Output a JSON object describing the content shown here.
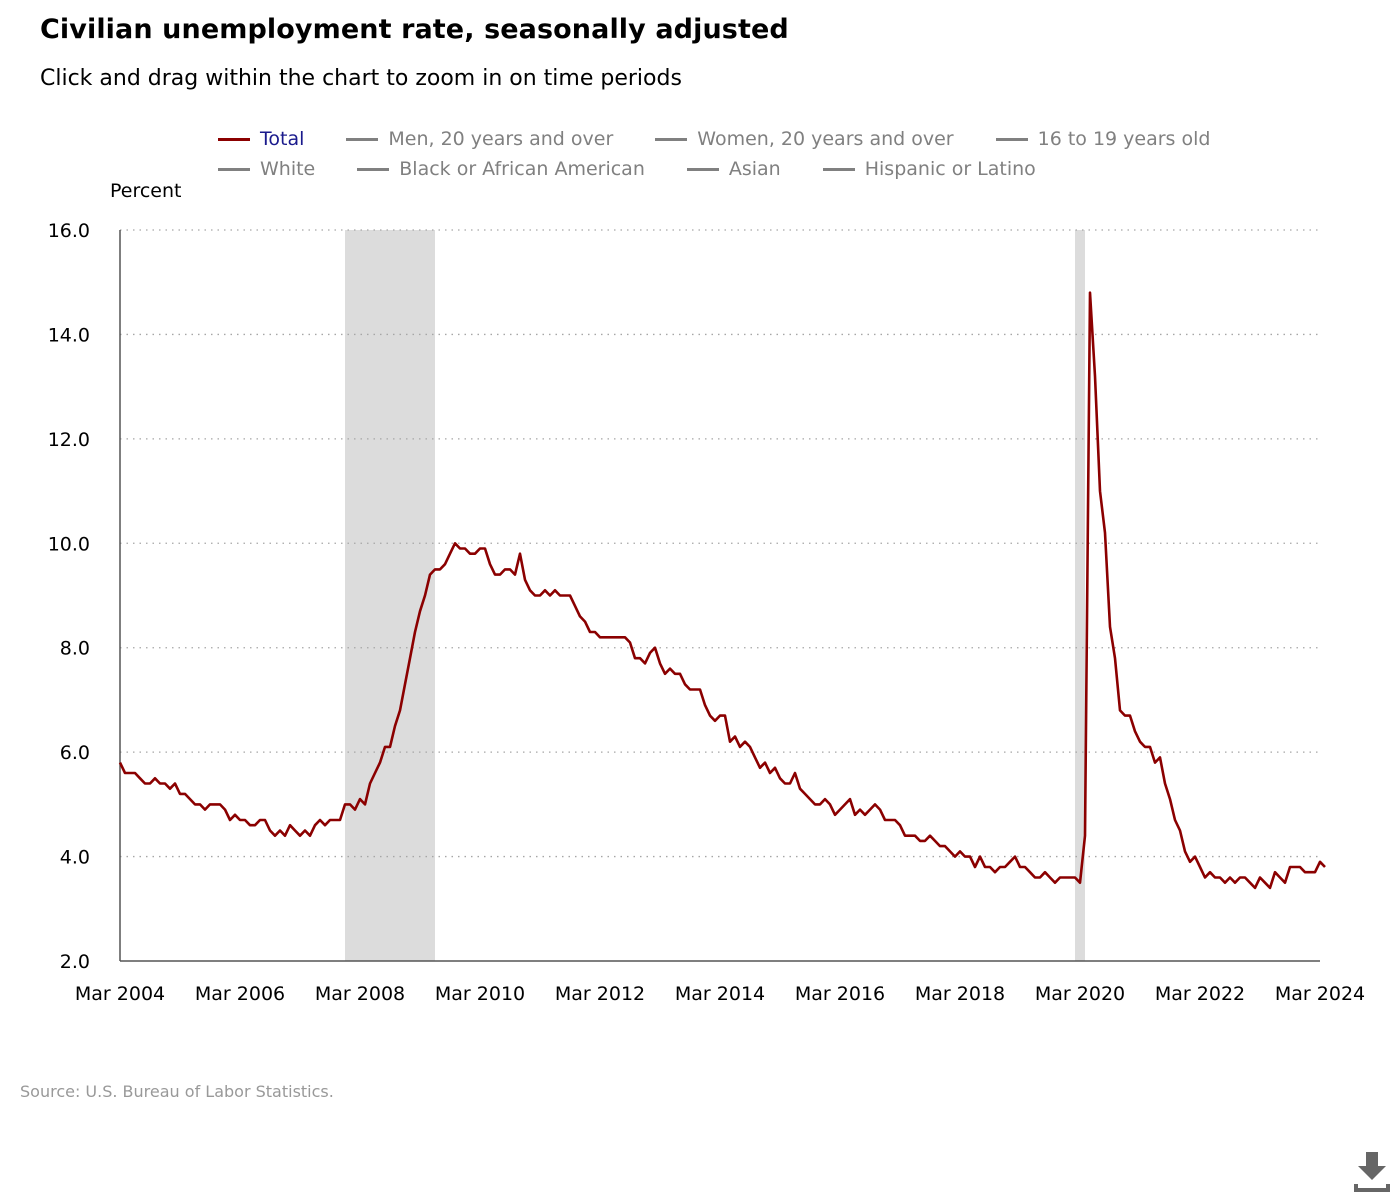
{
  "title": "Civilian unemployment rate, seasonally adjusted",
  "subtitle": "Click and drag within the chart to zoom in on time periods",
  "legend": [
    {
      "label": "Total",
      "color": "#8b0000",
      "active": true
    },
    {
      "label": "Men, 20 years and over",
      "color": "#808080",
      "active": false
    },
    {
      "label": "Women, 20 years and over",
      "color": "#808080",
      "active": false
    },
    {
      "label": "16 to 19 years old",
      "color": "#808080",
      "active": false
    },
    {
      "label": "White",
      "color": "#808080",
      "active": false
    },
    {
      "label": "Black or African American",
      "color": "#808080",
      "active": false
    },
    {
      "label": "Asian",
      "color": "#808080",
      "active": false
    },
    {
      "label": "Hispanic or Latino",
      "color": "#808080",
      "active": false
    }
  ],
  "source": "Source: U.S. Bureau of Labor Statistics.",
  "download_icon": "download-icon",
  "chart_data": {
    "type": "line",
    "ylabel": "Percent",
    "ylim": [
      2.0,
      16.0
    ],
    "yticks": [
      "2.0",
      "4.0",
      "6.0",
      "8.0",
      "10.0",
      "12.0",
      "14.0",
      "16.0"
    ],
    "xlim": [
      "2004-03",
      "2024-03"
    ],
    "xticks": [
      "Mar 2004",
      "Mar 2006",
      "Mar 2008",
      "Mar 2010",
      "Mar 2012",
      "Mar 2014",
      "Mar 2016",
      "Mar 2018",
      "Mar 2020",
      "Mar 2022",
      "Mar 2024"
    ],
    "grid": "horizontal dotted",
    "recessions": [
      {
        "start": "2007-12",
        "end": "2009-06"
      },
      {
        "start": "2020-02",
        "end": "2020-04"
      }
    ],
    "series": [
      {
        "name": "Total",
        "color": "#8b0000",
        "start": "2004-03",
        "values": [
          5.8,
          5.6,
          5.6,
          5.6,
          5.5,
          5.4,
          5.4,
          5.5,
          5.4,
          5.4,
          5.3,
          5.4,
          5.2,
          5.2,
          5.1,
          5.0,
          5.0,
          4.9,
          5.0,
          5.0,
          5.0,
          4.9,
          4.7,
          4.8,
          4.7,
          4.7,
          4.6,
          4.6,
          4.7,
          4.7,
          4.5,
          4.4,
          4.5,
          4.4,
          4.6,
          4.5,
          4.4,
          4.5,
          4.4,
          4.6,
          4.7,
          4.6,
          4.7,
          4.7,
          4.7,
          5.0,
          5.0,
          4.9,
          5.1,
          5.0,
          5.4,
          5.6,
          5.8,
          6.1,
          6.1,
          6.5,
          6.8,
          7.3,
          7.8,
          8.3,
          8.7,
          9.0,
          9.4,
          9.5,
          9.5,
          9.6,
          9.8,
          10.0,
          9.9,
          9.9,
          9.8,
          9.8,
          9.9,
          9.9,
          9.6,
          9.4,
          9.4,
          9.5,
          9.5,
          9.4,
          9.8,
          9.3,
          9.1,
          9.0,
          9.0,
          9.1,
          9.0,
          9.1,
          9.0,
          9.0,
          9.0,
          8.8,
          8.6,
          8.5,
          8.3,
          8.3,
          8.2,
          8.2,
          8.2,
          8.2,
          8.2,
          8.2,
          8.1,
          7.8,
          7.8,
          7.7,
          7.9,
          8.0,
          7.7,
          7.5,
          7.6,
          7.5,
          7.5,
          7.3,
          7.2,
          7.2,
          7.2,
          6.9,
          6.7,
          6.6,
          6.7,
          6.7,
          6.2,
          6.3,
          6.1,
          6.2,
          6.1,
          5.9,
          5.7,
          5.8,
          5.6,
          5.7,
          5.5,
          5.4,
          5.4,
          5.6,
          5.3,
          5.2,
          5.1,
          5.0,
          5.0,
          5.1,
          5.0,
          4.8,
          4.9,
          5.0,
          5.1,
          4.8,
          4.9,
          4.8,
          4.9,
          5.0,
          4.9,
          4.7,
          4.7,
          4.7,
          4.6,
          4.4,
          4.4,
          4.4,
          4.3,
          4.3,
          4.4,
          4.3,
          4.2,
          4.2,
          4.1,
          4.0,
          4.1,
          4.0,
          4.0,
          3.8,
          4.0,
          3.8,
          3.8,
          3.7,
          3.8,
          3.8,
          3.9,
          4.0,
          3.8,
          3.8,
          3.7,
          3.6,
          3.6,
          3.7,
          3.6,
          3.5,
          3.6,
          3.6,
          3.6,
          3.6,
          3.5,
          4.4,
          14.8,
          13.2,
          11.0,
          10.2,
          8.4,
          7.8,
          6.8,
          6.7,
          6.7,
          6.4,
          6.2,
          6.1,
          6.1,
          5.8,
          5.9,
          5.4,
          5.1,
          4.7,
          4.5,
          4.1,
          3.9,
          4.0,
          3.8,
          3.6,
          3.7,
          3.6,
          3.6,
          3.5,
          3.6,
          3.5,
          3.6,
          3.6,
          3.5,
          3.4,
          3.6,
          3.5,
          3.4,
          3.7,
          3.6,
          3.5,
          3.8,
          3.8,
          3.8,
          3.7,
          3.7,
          3.7,
          3.9,
          3.8
        ]
      }
    ]
  }
}
